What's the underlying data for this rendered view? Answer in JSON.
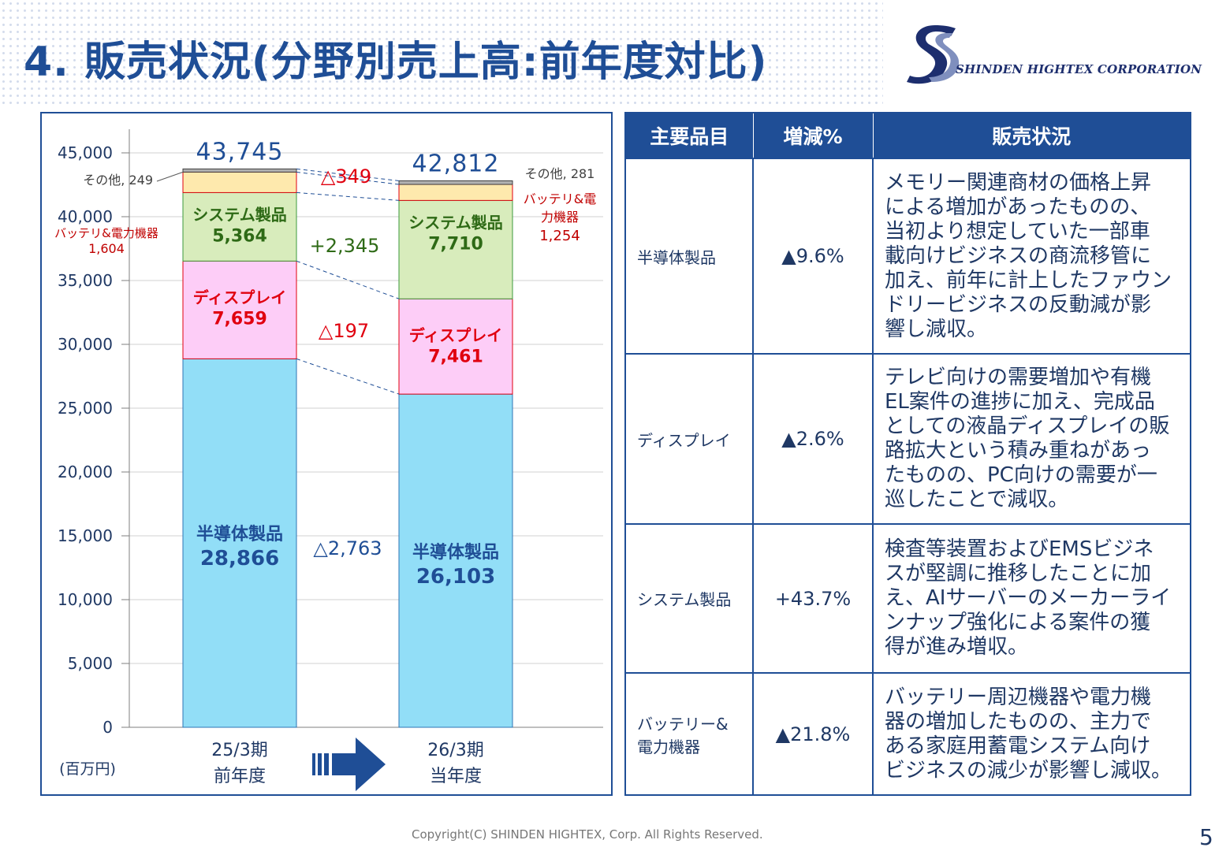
{
  "title": "4. 販売状況(分野別売上高:前年度対比)",
  "company": "SHINDEN HIGHTEX CORPORATION",
  "colors": {
    "semiconductor": "#92def7",
    "display": "#fdcdf7",
    "system": "#d8ecbc",
    "battery": "#fee9ad",
    "other": "#b0b0b0",
    "navy": "#1f4e96",
    "red": "#e0000f",
    "green": "#2e6a16"
  },
  "chart_data": {
    "type": "bar",
    "stacked": true,
    "unit_label": "(百万円)",
    "ylim": [
      0,
      45000
    ],
    "yticks": [
      "0",
      "5,000",
      "10,000",
      "15,000",
      "20,000",
      "25,000",
      "30,000",
      "35,000",
      "40,000",
      "45,000"
    ],
    "categories": [
      {
        "period": "25/3期",
        "label": "前年度"
      },
      {
        "period": "26/3期",
        "label": "当年度"
      }
    ],
    "totals": [
      "43,745",
      "42,812"
    ],
    "series": [
      {
        "name": "半導体製品",
        "values": [
          28866,
          26103
        ],
        "labels": [
          "28,866",
          "26,103"
        ],
        "color_key": "semiconductor",
        "text_color": "#1f4e96"
      },
      {
        "name": "ディスプレイ",
        "values": [
          7659,
          7461
        ],
        "labels": [
          "7,659",
          "7,461"
        ],
        "color_key": "display",
        "text_color": "#e0000f"
      },
      {
        "name": "システム製品",
        "values": [
          5364,
          7710
        ],
        "labels": [
          "5,364",
          "7,710"
        ],
        "color_key": "system",
        "text_color": "#2e6a16"
      },
      {
        "name": "バッテリ&電力機器",
        "values": [
          1604,
          1254
        ],
        "labels": [
          "1,604",
          "1,254"
        ],
        "color_key": "battery",
        "text_color": "#c00000"
      },
      {
        "name": "その他",
        "values": [
          249,
          281
        ],
        "labels": [
          "249",
          "281"
        ],
        "color_key": "other",
        "text_color": "#595959"
      }
    ],
    "outside_labels": {
      "other_prev": "その他, 249",
      "other_curr": "その他, 281",
      "battery_prev_name": "バッテリ&電力機器",
      "battery_prev_value": "1,604",
      "battery_curr_name_1": "バッテリ&電",
      "battery_curr_name_2": "力機器",
      "battery_curr_value": "1,254"
    },
    "changes": [
      {
        "series": "半導体製品",
        "text": "△2,763",
        "color": "#1f4e96"
      },
      {
        "series": "ディスプレイ",
        "text": "△197",
        "color": "#e0000f"
      },
      {
        "series": "システム製品",
        "text": "+2,345",
        "color": "#2e6a16"
      },
      {
        "series": "バッテリ&電力機器",
        "text": "△349",
        "color": "#e0000f"
      }
    ]
  },
  "table": {
    "headers": [
      "主要品目",
      "増減%",
      "販売状況"
    ],
    "rows": [
      {
        "category": "半導体製品",
        "change": "▲9.6%",
        "lines": [
          "メモリー関連商材の価格上昇",
          "による増加があったものの、",
          "当初より想定していた一部車",
          "載向けビジネスの商流移管に",
          "加え、前年に計上したファウン",
          "ドリービジネスの反動減が影",
          "響し減収。"
        ]
      },
      {
        "category": "ディスプレイ",
        "change": "▲2.6%",
        "lines": [
          "テレビ向けの需要増加や有機",
          "EL案件の進捗に加え、完成品",
          "としての液晶ディスプレイの販",
          "路拡大という積み重ねがあっ",
          "たものの、PC向けの需要が一",
          "巡したことで減収。"
        ]
      },
      {
        "category": "システム製品",
        "change": "+43.7%",
        "lines": [
          "検査等装置およびEMSビジネ",
          "スが堅調に推移したことに加",
          "え、AIサーバーのメーカーライ",
          "ンナップ強化による案件の獲",
          "得が進み増収。"
        ]
      },
      {
        "category_lines": [
          "バッテリー&",
          "電力機器"
        ],
        "change": "▲21.8%",
        "lines": [
          "バッテリー周辺機器や電力機",
          "器の増加したものの、主力で",
          "ある家庭用蓄電システム向け",
          "ビジネスの減少が影響し減収。"
        ]
      }
    ]
  },
  "footer": "Copyright(C)  SHINDEN HIGHTEX, Corp.  All Rights Reserved.",
  "page_number": "5"
}
